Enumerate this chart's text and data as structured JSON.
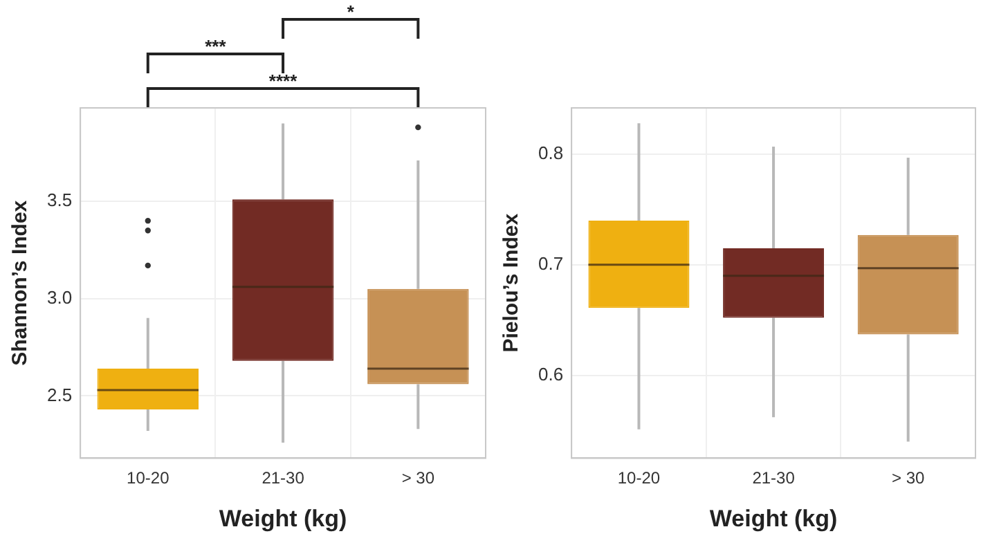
{
  "chart_data": [
    {
      "type": "box",
      "xlabel": "Weight (kg)",
      "ylabel": "Shannon’s Index",
      "categories": [
        "10-20",
        "21-30",
        "> 30"
      ],
      "colors": [
        "#efb011",
        "#722b24",
        "#c69155"
      ],
      "boxes": [
        {
          "low": 2.32,
          "q1": 2.43,
          "median": 2.53,
          "q3": 2.64,
          "high": 2.9,
          "outliers": [
            3.4,
            3.35,
            3.17
          ]
        },
        {
          "low": 2.26,
          "q1": 2.68,
          "median": 3.06,
          "q3": 3.51,
          "high": 3.9
        },
        {
          "low": 2.33,
          "q1": 2.56,
          "median": 2.64,
          "q3": 3.05,
          "high": 3.71,
          "outliers": [
            3.88
          ]
        }
      ],
      "ylim": [
        2.18,
        3.98
      ],
      "yticks": [
        {
          "value": 2.5,
          "label": "2.5"
        },
        {
          "value": 3,
          "label": "3.0"
        },
        {
          "value": 3.5,
          "label": "3.5"
        }
      ],
      "grid": true,
      "annotations": [
        "***",
        "*",
        "****"
      ]
    },
    {
      "type": "box",
      "xlabel": "Weight (kg)",
      "ylabel": "Pielou’s Index",
      "categories": [
        "10-20",
        "21-30",
        "> 30"
      ],
      "colors": [
        "#efb011",
        "#722b24",
        "#c69155"
      ],
      "boxes": [
        {
          "low": 0.551,
          "q1": 0.661,
          "median": 0.7,
          "q3": 0.74,
          "high": 0.828
        },
        {
          "low": 0.562,
          "q1": 0.652,
          "median": 0.69,
          "q3": 0.715,
          "high": 0.807
        },
        {
          "low": 0.54,
          "q1": 0.637,
          "median": 0.697,
          "q3": 0.727,
          "high": 0.797
        }
      ],
      "ylim": [
        0.525,
        0.842
      ],
      "yticks": [
        0.6,
        0.7,
        0.8
      ],
      "grid": true
    }
  ]
}
